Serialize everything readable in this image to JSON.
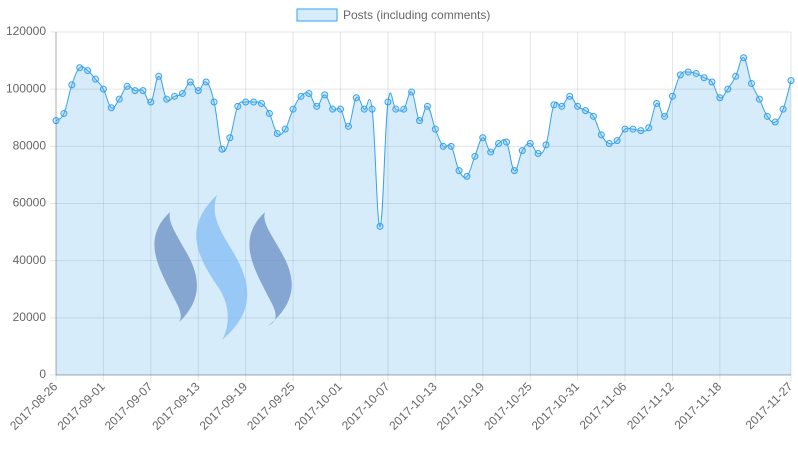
{
  "chart_data": {
    "type": "line",
    "legend": "top",
    "grid": true,
    "categories": [
      "2017-08-26",
      null,
      null,
      null,
      null,
      null,
      "2017-09-01",
      null,
      null,
      null,
      null,
      null,
      "2017-09-07",
      null,
      null,
      null,
      null,
      null,
      "2017-09-13",
      null,
      null,
      null,
      null,
      null,
      "2017-09-19",
      null,
      null,
      null,
      null,
      null,
      "2017-09-25",
      null,
      null,
      null,
      null,
      null,
      "2017-10-01",
      null,
      null,
      null,
      null,
      null,
      "2017-10-07",
      null,
      null,
      null,
      null,
      null,
      "2017-10-13",
      null,
      null,
      null,
      null,
      null,
      "2017-10-19",
      null,
      null,
      null,
      null,
      null,
      "2017-10-25",
      null,
      null,
      null,
      null,
      null,
      "2017-10-31",
      null,
      null,
      null,
      null,
      null,
      "2017-11-06",
      null,
      null,
      null,
      null,
      null,
      "2017-11-12",
      null,
      null,
      null,
      null,
      null,
      "2017-11-18",
      null,
      null,
      null,
      null,
      null,
      null,
      null,
      null,
      "2017-11-27"
    ],
    "series": [
      {
        "name": "Posts (including comments)",
        "color": "#36a2eb",
        "fill": "rgba(54,162,235,0.2)",
        "values": [
          89000,
          91500,
          101500,
          107500,
          106500,
          103500,
          100000,
          93500,
          96500,
          101000,
          99500,
          99500,
          95500,
          104500,
          96500,
          97500,
          98500,
          102500,
          99500,
          102500,
          95500,
          79000,
          83000,
          94000,
          95500,
          95500,
          95000,
          91500,
          84500,
          86000,
          93000,
          97500,
          98500,
          94000,
          98000,
          93000,
          93000,
          87000,
          97000,
          93000,
          93000,
          52000,
          95500,
          93000,
          93000,
          99000,
          89000,
          94000,
          86000,
          80000,
          80000,
          71500,
          69500,
          76500,
          83000,
          78000,
          81000,
          81500,
          71500,
          78500,
          81000,
          77500,
          80500,
          94500,
          94000,
          97500,
          94000,
          92500,
          90500,
          84000,
          81000,
          82000,
          86000,
          86000,
          85500,
          86500,
          95000,
          90500,
          97500,
          105000,
          106000,
          105500,
          104000,
          102500,
          97000,
          100000,
          104500,
          111000,
          102000,
          96500,
          90500,
          88500,
          93000,
          103000
        ]
      }
    ],
    "ylim": [
      0,
      120000
    ],
    "yticks": [
      0,
      20000,
      40000,
      60000,
      80000,
      100000,
      120000
    ]
  }
}
